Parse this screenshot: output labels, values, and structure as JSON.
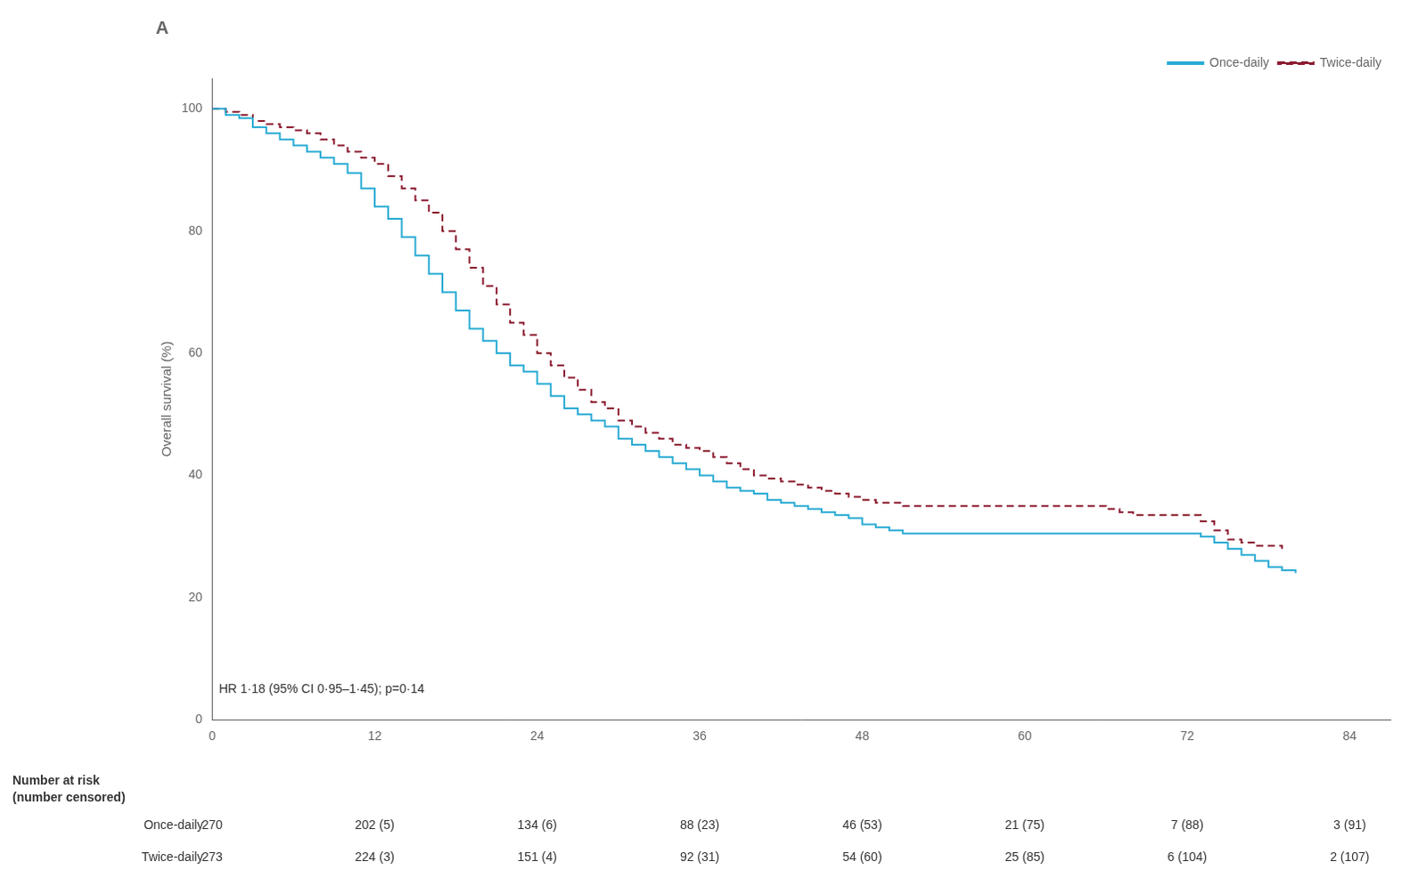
{
  "chart_data": {
    "type": "line",
    "title": "A",
    "ylabel": "Overall survival (%)",
    "xlim": [
      0,
      87
    ],
    "xticks": [
      0,
      12,
      24,
      36,
      48,
      60,
      72,
      84
    ],
    "ylim": [
      0,
      105
    ],
    "yticks": [
      0,
      20,
      40,
      60,
      80,
      100
    ],
    "grid": false,
    "legend": "upper right",
    "annotations": [
      {
        "text": "HR 1·18 (95% CI 0·95–1·45); p=0·14",
        "x": 0.5,
        "y": 4
      }
    ],
    "series": [
      {
        "name": "Once-daily",
        "color": "#29ABD4",
        "line_style": "solid",
        "x": [
          0,
          1,
          2,
          3,
          4,
          5,
          6,
          7,
          8,
          9,
          10,
          11,
          12,
          13,
          14,
          15,
          16,
          17,
          18,
          19,
          20,
          21,
          22,
          23,
          24,
          25,
          26,
          27,
          28,
          29,
          30,
          31,
          32,
          33,
          34,
          35,
          36,
          37,
          38,
          39,
          40,
          41,
          42,
          43,
          44,
          45,
          46,
          47,
          48,
          49,
          50,
          51,
          52,
          53,
          54,
          55,
          56,
          57,
          58,
          59,
          60,
          61,
          62,
          63,
          64,
          65,
          66,
          67,
          68,
          69,
          70,
          71,
          72,
          73,
          74,
          75,
          76,
          77,
          78,
          79,
          80
        ],
        "values": [
          100,
          99,
          98.5,
          97,
          96,
          95,
          94,
          93,
          92,
          91,
          89.5,
          87,
          84,
          82,
          79,
          76,
          73,
          70,
          67,
          64,
          62,
          60,
          58,
          57,
          55,
          53,
          51,
          50,
          49,
          48,
          46,
          45,
          44,
          43,
          42,
          41,
          40,
          39,
          38,
          37.5,
          37,
          36,
          35.5,
          35,
          34.5,
          34,
          33.5,
          33,
          32,
          31.5,
          31,
          30.5,
          30.5,
          30.5,
          30.5,
          30.5,
          30.5,
          30.5,
          30.5,
          30.5,
          30.5,
          30.5,
          30.5,
          30.5,
          30.5,
          30.5,
          30.5,
          30.5,
          30.5,
          30.5,
          30.5,
          30.5,
          30.5,
          30,
          29,
          28,
          27,
          26,
          25,
          24.5,
          24
        ]
      },
      {
        "name": "Twice-daily",
        "color": "#8B1A2F",
        "line_style": "dashed",
        "x": [
          0,
          1,
          2,
          3,
          4,
          5,
          6,
          7,
          8,
          9,
          10,
          11,
          12,
          13,
          14,
          15,
          16,
          17,
          18,
          19,
          20,
          21,
          22,
          23,
          24,
          25,
          26,
          27,
          28,
          29,
          30,
          31,
          32,
          33,
          34,
          35,
          36,
          37,
          38,
          39,
          40,
          41,
          42,
          43,
          44,
          45,
          46,
          47,
          48,
          49,
          50,
          51,
          52,
          53,
          54,
          55,
          56,
          57,
          58,
          59,
          60,
          61,
          62,
          63,
          64,
          65,
          66,
          67,
          68,
          69,
          70,
          71,
          72,
          73,
          74,
          75,
          76,
          77,
          78,
          79
        ],
        "values": [
          100,
          99.5,
          99,
          98,
          97.5,
          97,
          96.5,
          96,
          95,
          94,
          93,
          92,
          91,
          89,
          87,
          85,
          83,
          80,
          77,
          74,
          71,
          68,
          65,
          63,
          60,
          58,
          56,
          54,
          52,
          51,
          49,
          48,
          47,
          46,
          45,
          44.5,
          44,
          43,
          42,
          41,
          40,
          39.5,
          39,
          38.5,
          38,
          37.5,
          37,
          36.5,
          36,
          35.5,
          35.5,
          35,
          35,
          35,
          35,
          35,
          35,
          35,
          35,
          35,
          35,
          35,
          35,
          35,
          35,
          35,
          34.5,
          34,
          33.5,
          33.5,
          33.5,
          33.5,
          33.5,
          32.5,
          31,
          29.5,
          29,
          28.5,
          28.5,
          28
        ]
      }
    ],
    "risk_table": {
      "title": "Number at risk\n(number censored)",
      "rows": [
        {
          "name": "Once-daily",
          "values": [
            "270",
            "202 (5)",
            "134 (6)",
            "88 (23)",
            "46 (53)",
            "21 (75)",
            "7 (88)",
            "3 (91)"
          ]
        },
        {
          "name": "Twice-daily",
          "values": [
            "273",
            "224 (3)",
            "151 (4)",
            "92 (31)",
            "54 (60)",
            "25 (85)",
            "6 (104)",
            "2 (107)"
          ]
        }
      ]
    }
  }
}
